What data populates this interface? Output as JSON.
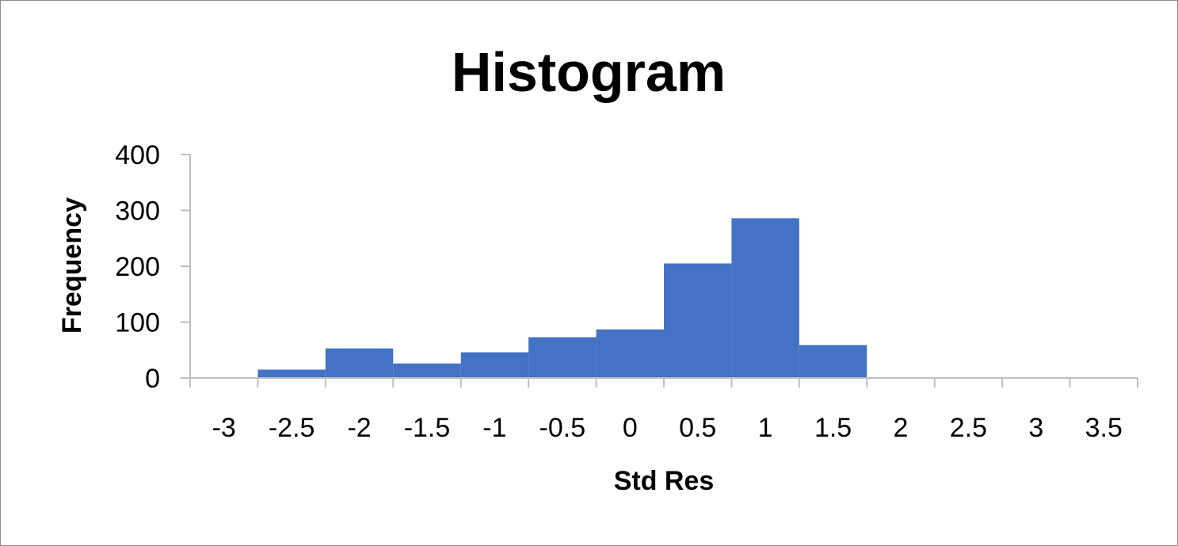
{
  "chart_data": {
    "type": "bar",
    "title": "Histogram",
    "xlabel": "Std Res",
    "ylabel": "Frequency",
    "x_tick_labels": [
      "-3",
      "-2.5",
      "-2",
      "-1.5",
      "-1",
      "-0.5",
      "0",
      "0.5",
      "1",
      "1.5",
      "2",
      "2.5",
      "3",
      "3.5"
    ],
    "y_tick_labels": [
      "0",
      "100",
      "200",
      "300",
      "400"
    ],
    "ylim": [
      0,
      400
    ],
    "bin_width": 0.5,
    "categories": [
      "-3",
      "-2.5",
      "-2",
      "-1.5",
      "-1",
      "-0.5",
      "0",
      "0.5",
      "1",
      "1.5",
      "2",
      "2.5",
      "3",
      "3.5"
    ],
    "values": [
      0,
      15,
      53,
      26,
      46,
      73,
      87,
      205,
      286,
      59,
      0,
      0,
      0,
      0
    ],
    "bar_color": "#4472C4",
    "grid": false,
    "legend": "none"
  }
}
